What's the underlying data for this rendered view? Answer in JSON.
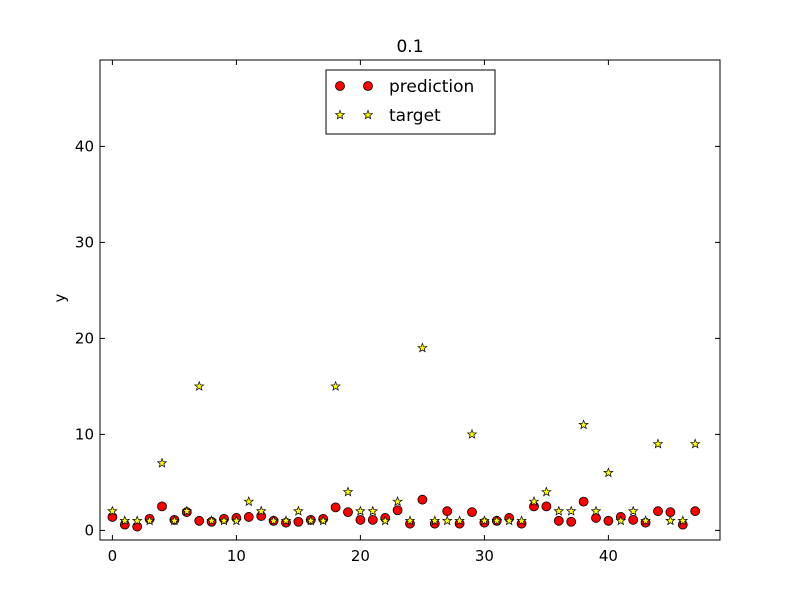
{
  "chart_data": {
    "type": "scatter",
    "title": "0.1",
    "xlabel": "",
    "ylabel": "y",
    "xlim": [
      -1,
      49
    ],
    "ylim": [
      -1,
      49
    ],
    "xticks": [
      0,
      10,
      20,
      30,
      40
    ],
    "yticks": [
      0,
      10,
      20,
      30,
      40
    ],
    "grid": false,
    "legend_position": "top-center",
    "x": [
      0,
      1,
      2,
      3,
      4,
      5,
      6,
      7,
      8,
      9,
      10,
      11,
      12,
      13,
      14,
      15,
      16,
      17,
      18,
      19,
      20,
      21,
      22,
      23,
      24,
      25,
      26,
      27,
      28,
      29,
      30,
      31,
      32,
      33,
      34,
      35,
      36,
      37,
      38,
      39,
      40,
      41,
      42,
      43,
      44,
      45,
      46,
      47
    ],
    "series": [
      {
        "name": "prediction",
        "marker": "circle",
        "color": "#ff0000",
        "values": [
          1.4,
          0.6,
          0.4,
          1.2,
          2.5,
          1.1,
          1.9,
          1.0,
          0.9,
          1.2,
          1.3,
          1.4,
          1.5,
          1.0,
          0.8,
          0.9,
          1.1,
          1.2,
          2.4,
          1.9,
          1.1,
          1.1,
          1.3,
          2.1,
          0.7,
          3.2,
          0.7,
          2.0,
          0.7,
          1.9,
          0.8,
          1.0,
          1.3,
          0.7,
          2.5,
          2.5,
          1.0,
          0.9,
          3.0,
          1.3,
          1.0,
          1.4,
          1.1,
          0.8,
          2.0,
          1.9,
          0.6,
          2.0
        ]
      },
      {
        "name": "target",
        "marker": "star",
        "color": "#ffff00",
        "values": [
          2,
          1,
          1,
          1,
          7,
          1,
          2,
          15,
          1,
          1,
          1,
          3,
          2,
          1,
          1,
          2,
          1,
          1,
          15,
          4,
          2,
          2,
          1,
          3,
          1,
          19,
          1,
          1,
          1,
          10,
          1,
          1,
          1,
          1,
          3,
          4,
          2,
          2,
          11,
          2,
          6,
          1,
          2,
          1,
          9,
          1,
          1,
          9
        ]
      }
    ]
  }
}
